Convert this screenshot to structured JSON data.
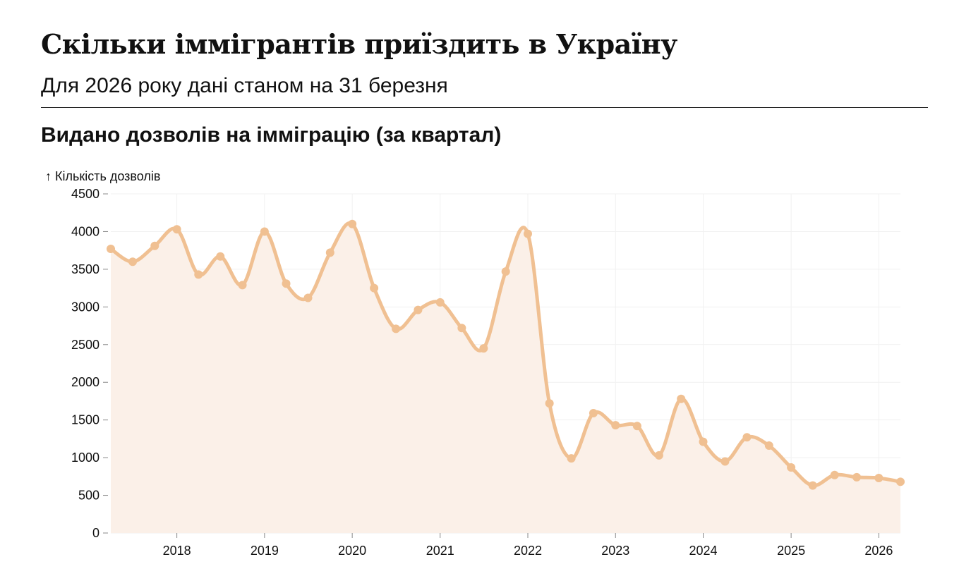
{
  "header": {
    "title": "Скільки іммігрантів приїздить в Україну",
    "subtitle": "Для 2026 року дані станом на 31 березня"
  },
  "chart_data": {
    "type": "area",
    "title": "Видано дозволів на імміграцію (за квартал)",
    "ylabel": "↑ Кількість дозволів",
    "xlabel": "",
    "ylim": [
      0,
      4500
    ],
    "yticks": [
      0,
      500,
      1000,
      1500,
      2000,
      2500,
      3000,
      3500,
      4000,
      4500
    ],
    "xticks": [
      "2018",
      "2019",
      "2020",
      "2021",
      "2022",
      "2023",
      "2024",
      "2025",
      "2026"
    ],
    "x_range": [
      "2017-04-01",
      "2026-04-01"
    ],
    "grid": true,
    "line_color": "#f0c092",
    "fill_color": "#fbf0e8",
    "x": [
      "2017-04-01",
      "2017-07-01",
      "2017-10-01",
      "2018-01-01",
      "2018-04-01",
      "2018-07-01",
      "2018-10-01",
      "2019-01-01",
      "2019-04-01",
      "2019-07-01",
      "2019-10-01",
      "2020-01-01",
      "2020-04-01",
      "2020-07-01",
      "2020-10-01",
      "2021-01-01",
      "2021-04-01",
      "2021-07-01",
      "2021-10-01",
      "2022-01-01",
      "2022-04-01",
      "2022-07-01",
      "2022-10-01",
      "2023-01-01",
      "2023-04-01",
      "2023-07-01",
      "2023-10-01",
      "2024-01-01",
      "2024-04-01",
      "2024-07-01",
      "2024-10-01",
      "2025-01-01",
      "2025-04-01",
      "2025-07-01",
      "2025-10-01",
      "2026-01-01",
      "2026-04-01"
    ],
    "values": [
      3770,
      3600,
      3810,
      4030,
      3430,
      3670,
      3290,
      4000,
      3310,
      3120,
      3720,
      4100,
      3250,
      2710,
      2960,
      3060,
      2720,
      2450,
      3470,
      3970,
      1720,
      990,
      1590,
      1430,
      1420,
      1030,
      1780,
      1210,
      950,
      1270,
      1160,
      870,
      630,
      770,
      740,
      730,
      680
    ]
  }
}
